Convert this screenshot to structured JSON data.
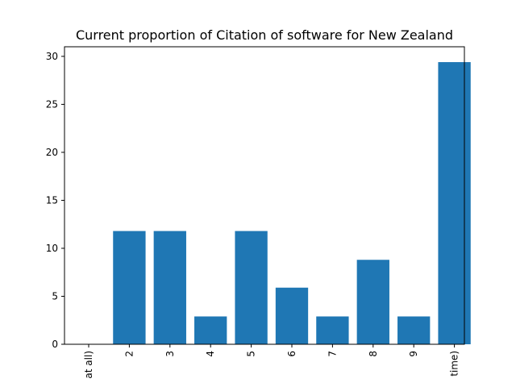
{
  "chart_data": {
    "type": "bar",
    "title": "Current proportion of Citation of software for New Zealand",
    "xlabel": "",
    "ylabel": "",
    "categories": [
      "at all)",
      "2",
      "3",
      "4",
      "5",
      "6",
      "7",
      "8",
      "9",
      "time)"
    ],
    "values": [
      0,
      11.8,
      11.8,
      2.9,
      11.8,
      5.9,
      2.9,
      8.8,
      2.9,
      29.4
    ],
    "ylim": [
      0,
      31
    ],
    "yticks": [
      0,
      5,
      10,
      15,
      20,
      25,
      30
    ],
    "grid": false,
    "bar_color": "#1f77b4"
  }
}
